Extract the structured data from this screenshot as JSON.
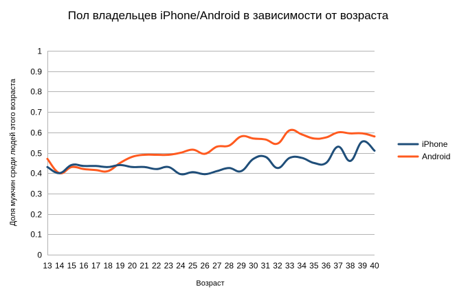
{
  "chart_data": {
    "type": "line",
    "title": "Пол владельцев iPhone/Android в зависимости от возраста",
    "xlabel": "Возраст",
    "ylabel": "Доля мужчин среди людей этого возраста",
    "categories": [
      "13",
      "14",
      "15",
      "16",
      "17",
      "18",
      "19",
      "20",
      "21",
      "22",
      "23",
      "24",
      "25",
      "26",
      "27",
      "28",
      "29",
      "30",
      "31",
      "32",
      "33",
      "34",
      "35",
      "36",
      "37",
      "38",
      "39",
      "40"
    ],
    "ylim": [
      0,
      1
    ],
    "yticks": [
      "0",
      "0.1",
      "0.2",
      "0.3",
      "0.4",
      "0.5",
      "0.6",
      "0.7",
      "0.8",
      "0.9",
      "1"
    ],
    "grid": true,
    "legend_position": "right",
    "smooth": true,
    "series": [
      {
        "name": "iPhone",
        "color": "#1f4e79",
        "values": [
          0.43,
          0.4,
          0.44,
          0.435,
          0.435,
          0.43,
          0.44,
          0.43,
          0.43,
          0.42,
          0.43,
          0.395,
          0.405,
          0.395,
          0.41,
          0.425,
          0.41,
          0.47,
          0.48,
          0.425,
          0.475,
          0.475,
          0.45,
          0.45,
          0.53,
          0.46,
          0.555,
          0.51
        ]
      },
      {
        "name": "Android",
        "color": "#ff5a1f",
        "values": [
          0.47,
          0.4,
          0.43,
          0.42,
          0.415,
          0.41,
          0.45,
          0.48,
          0.49,
          0.49,
          0.49,
          0.5,
          0.515,
          0.495,
          0.53,
          0.535,
          0.58,
          0.57,
          0.565,
          0.545,
          0.61,
          0.59,
          0.57,
          0.575,
          0.6,
          0.595,
          0.595,
          0.58
        ]
      }
    ]
  }
}
